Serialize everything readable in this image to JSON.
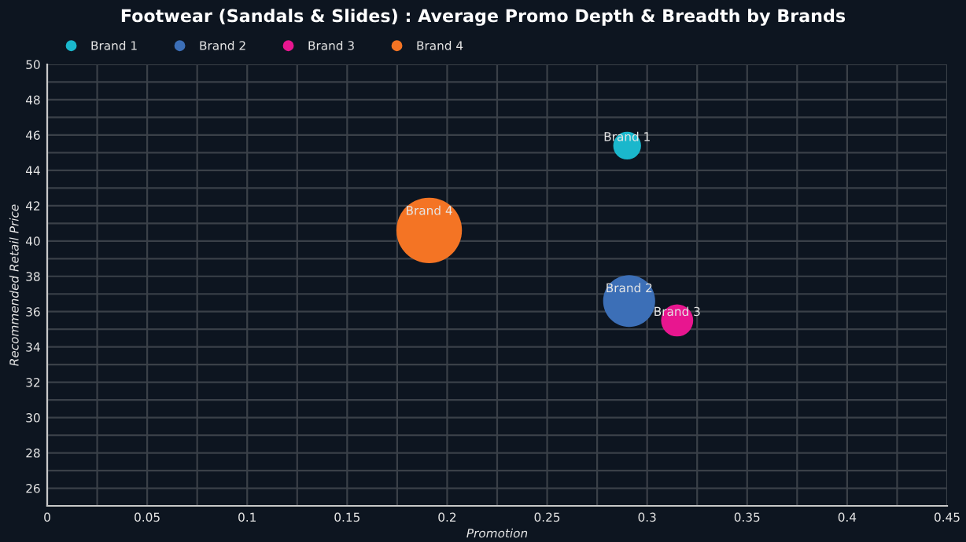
{
  "chart_data": {
    "type": "bubble",
    "title": "Footwear (Sandals & Slides) : Average Promo Depth & Breadth by Brands",
    "xlabel": "Promotion",
    "ylabel": "Recommended Retail Price",
    "series": [
      {
        "name": "Brand 1",
        "color": "#1ab7cc",
        "x": [
          0.29
        ],
        "values": [
          45.4
        ],
        "sizes": [
          0.18
        ]
      },
      {
        "name": "Brand 2",
        "color": "#3c6fb7",
        "x": [
          0.291
        ],
        "values": [
          36.6
        ],
        "sizes": [
          0.63
        ]
      },
      {
        "name": "Brand 3",
        "color": "#e8168f",
        "x": [
          0.315
        ],
        "values": [
          35.5
        ],
        "sizes": [
          0.24
        ]
      },
      {
        "name": "Brand 4",
        "color": "#f47424",
        "x": [
          0.191
        ],
        "values": [
          40.6
        ],
        "sizes": [
          1
        ]
      }
    ],
    "xlim": [
      0,
      0.45
    ],
    "ylim": [
      25,
      50
    ],
    "xticks": [
      0,
      {
        "value": 0.025,
        "label": null
      },
      0.05,
      {
        "value": 0.075,
        "label": null
      },
      0.1,
      {
        "value": 0.125,
        "label": null
      },
      0.15,
      {
        "value": 0.175,
        "label": null
      },
      0.2,
      {
        "value": 0.225,
        "label": null
      },
      0.25,
      {
        "value": 0.275,
        "label": null
      },
      0.3,
      {
        "value": 0.325,
        "label": null
      },
      0.35,
      {
        "value": 0.375,
        "label": null
      },
      0.4,
      {
        "value": 0.425,
        "label": null
      },
      0.45
    ],
    "yticks": [
      {
        "value": 25,
        "label": null
      },
      26,
      {
        "value": 27,
        "label": null
      },
      28,
      {
        "value": 29,
        "label": null
      },
      30,
      {
        "value": 31,
        "label": null
      },
      32,
      {
        "value": 33,
        "label": null
      },
      34,
      {
        "value": 35,
        "label": null
      },
      36,
      {
        "value": 37,
        "label": null
      },
      38,
      {
        "value": 39,
        "label": null
      },
      40,
      {
        "value": 41,
        "label": null
      },
      42,
      {
        "value": 43,
        "label": null
      },
      44,
      {
        "value": 45,
        "label": null
      },
      46,
      {
        "value": 47,
        "label": null
      },
      48,
      {
        "value": 49,
        "label": null
      },
      50
    ],
    "grid": true,
    "legend": "top left",
    "marker": "circle"
  }
}
